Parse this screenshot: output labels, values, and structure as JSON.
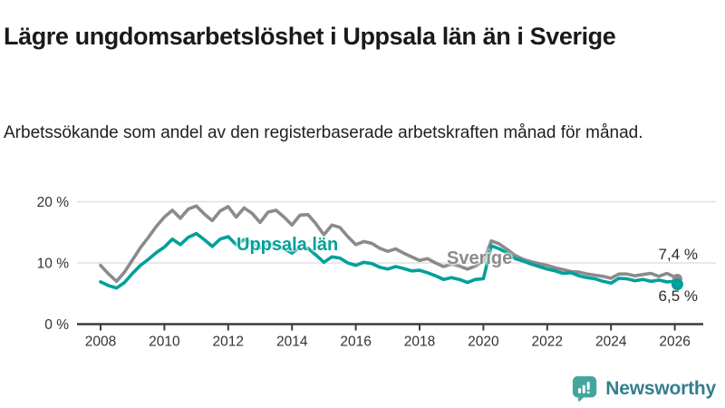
{
  "header": {
    "title": "Lägre ungdomsarbetslöshet i Uppsala län än i Sverige",
    "subtitle": "Arbetssökande som andel av den registerbaserade arbetskraften månad för månad."
  },
  "chart_data": {
    "type": "line",
    "title": "Lägre ungdomsarbetslöshet i Uppsala län än i Sverige",
    "grid": "horizontal",
    "legend_position": "inline-labels",
    "x_axis": {
      "ticks": [
        "2008",
        "2010",
        "2012",
        "2014",
        "2016",
        "2018",
        "2020",
        "2022",
        "2024",
        "2026"
      ]
    },
    "y_axis": {
      "unit": "%",
      "range": [
        0,
        22
      ],
      "ticks": [
        {
          "value": 20,
          "label": "20 %"
        },
        {
          "value": 10,
          "label": "10 %"
        },
        {
          "value": 0,
          "label": "0 %"
        }
      ]
    },
    "x_range": [
      2008,
      2026.08
    ],
    "x": [
      2008,
      2008.25,
      2008.5,
      2008.75,
      2009,
      2009.25,
      2009.5,
      2009.75,
      2010,
      2010.25,
      2010.5,
      2010.75,
      2011,
      2011.25,
      2011.5,
      2011.75,
      2012,
      2012.25,
      2012.5,
      2012.75,
      2013,
      2013.25,
      2013.5,
      2013.75,
      2014,
      2014.25,
      2014.5,
      2014.75,
      2015,
      2015.25,
      2015.5,
      2015.75,
      2016,
      2016.25,
      2016.5,
      2016.75,
      2017,
      2017.25,
      2017.5,
      2017.75,
      2018,
      2018.25,
      2018.5,
      2018.75,
      2019,
      2019.25,
      2019.5,
      2019.75,
      2020,
      2020.25,
      2020.5,
      2020.75,
      2021,
      2021.25,
      2021.5,
      2021.75,
      2022,
      2022.25,
      2022.5,
      2022.75,
      2023,
      2023.25,
      2023.5,
      2023.75,
      2024,
      2024.25,
      2024.5,
      2024.75,
      2025,
      2025.25,
      2025.5,
      2025.75,
      2026,
      2026.08
    ],
    "series": [
      {
        "name": "Sverige",
        "color": "#8b8b8b",
        "end_label": "7,4 %",
        "end_value": 7.4,
        "values": [
          9.6,
          8.2,
          7.0,
          8.5,
          10.5,
          12.5,
          14.2,
          16.0,
          17.5,
          18.6,
          17.3,
          18.8,
          19.3,
          18.0,
          16.9,
          18.5,
          19.2,
          17.5,
          19.0,
          18.1,
          16.6,
          18.3,
          18.6,
          17.5,
          16.2,
          17.8,
          17.9,
          16.4,
          14.6,
          16.2,
          15.8,
          14.3,
          13.0,
          13.5,
          13.2,
          12.4,
          11.9,
          12.3,
          11.6,
          11.0,
          10.4,
          10.7,
          10.0,
          9.4,
          9.8,
          9.5,
          9.0,
          9.5,
          10.3,
          13.6,
          13.1,
          12.2,
          11.2,
          10.6,
          10.2,
          9.9,
          9.6,
          9.2,
          8.9,
          8.6,
          8.5,
          8.2,
          8.0,
          7.8,
          7.5,
          8.2,
          8.2,
          7.9,
          8.1,
          8.3,
          7.8,
          8.3,
          7.7,
          7.4
        ]
      },
      {
        "name": "Uppsala län",
        "color": "#00a09a",
        "end_label": "6,5 %",
        "end_value": 6.5,
        "values": [
          6.9,
          6.3,
          5.9,
          6.8,
          8.3,
          9.6,
          10.6,
          11.7,
          12.6,
          13.9,
          13.0,
          14.2,
          14.8,
          13.8,
          12.7,
          13.9,
          14.3,
          13.0,
          13.8,
          13.2,
          12.4,
          13.1,
          12.9,
          12.3,
          11.6,
          12.6,
          12.4,
          11.3,
          10.1,
          11.0,
          10.8,
          10.0,
          9.6,
          10.1,
          9.9,
          9.3,
          9.0,
          9.4,
          9.1,
          8.7,
          8.8,
          8.4,
          7.9,
          7.3,
          7.6,
          7.3,
          6.8,
          7.3,
          7.4,
          12.8,
          12.3,
          11.6,
          10.7,
          10.3,
          9.8,
          9.4,
          9.0,
          8.7,
          8.3,
          8.4,
          7.9,
          7.6,
          7.4,
          7.0,
          6.7,
          7.5,
          7.4,
          7.1,
          7.3,
          7.0,
          7.2,
          6.9,
          7.0,
          6.5
        ]
      }
    ],
    "colors": {
      "axis": "#3c3c3c",
      "gridline": "#e0e0e0",
      "tick_label": "#333333"
    }
  },
  "footer": {
    "brand": "Newsworthy",
    "brand_icon": "bar-chart-speech-bubble",
    "brand_color": "#42a69e"
  }
}
